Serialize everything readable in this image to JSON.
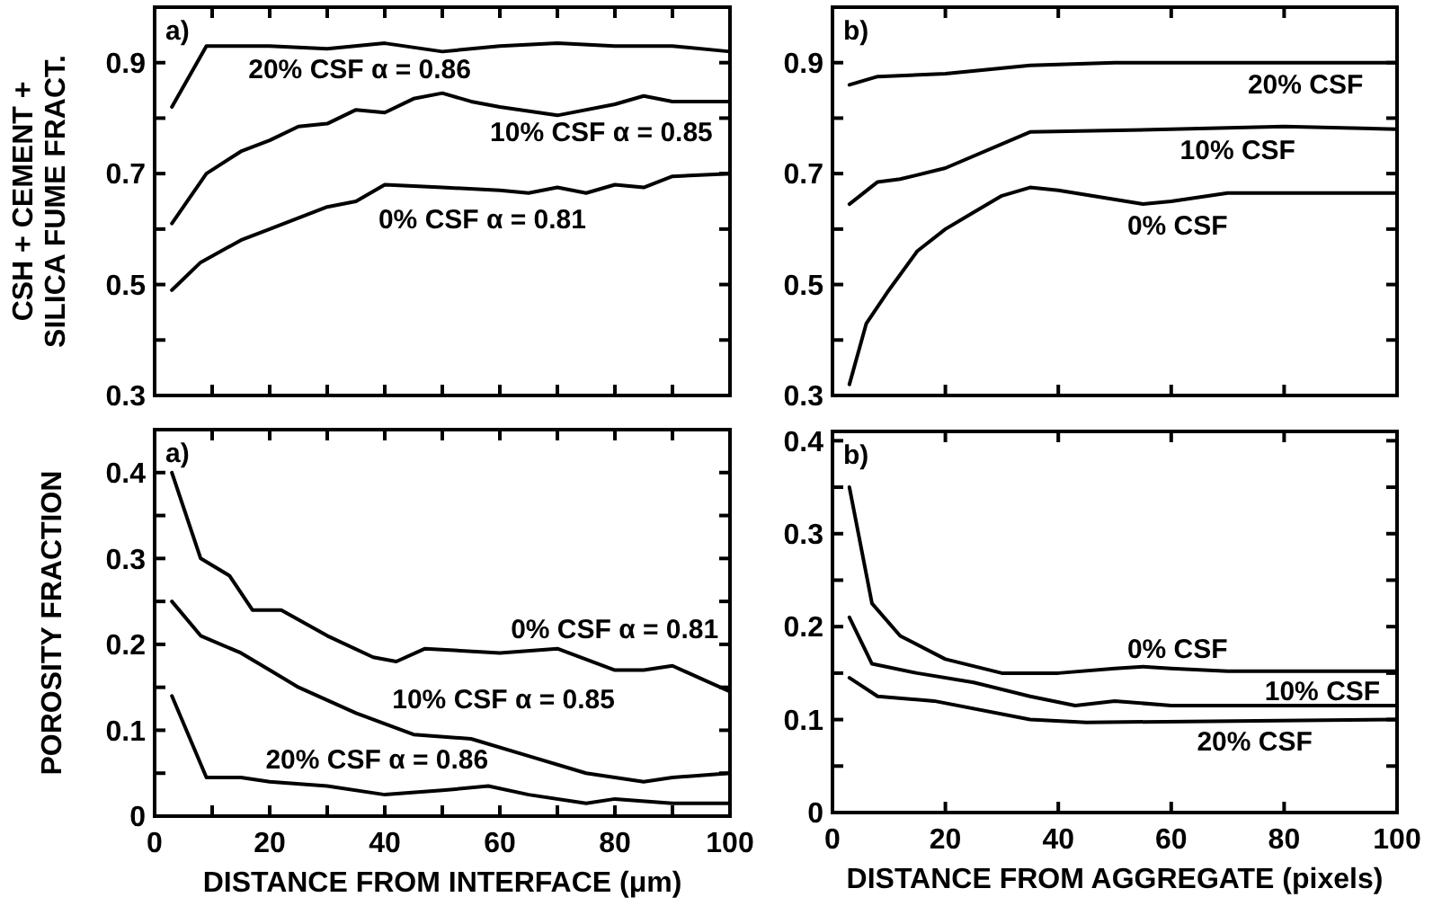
{
  "chart_data": [
    {
      "type": "line",
      "ylabel": "CSH + CEMENT +\nSILICA FUME FRACT.",
      "annotations": [
        "a)"
      ],
      "xlim": [
        0,
        100
      ],
      "ylim": [
        0.3,
        1.0
      ],
      "tick_labels": "y",
      "xticks": [
        {
          "value": 10,
          "label": null
        },
        {
          "value": 20,
          "label": null
        },
        {
          "value": 30,
          "label": null
        },
        {
          "value": 40,
          "label": null
        },
        {
          "value": 50,
          "label": null
        },
        {
          "value": 60,
          "label": null
        },
        {
          "value": 70,
          "label": null
        },
        {
          "value": 80,
          "label": null
        },
        {
          "value": 90,
          "label": null
        }
      ],
      "yticks": [
        0.3,
        {
          "value": 0.4,
          "label": null
        },
        0.5,
        {
          "value": 0.6,
          "label": null
        },
        0.7,
        {
          "value": 0.8,
          "label": null
        },
        0.9
      ],
      "series": [
        {
          "name": "20% CSF α = 0.86",
          "color": "#000000",
          "x": [
            3,
            9,
            20,
            30,
            40,
            50,
            60,
            70,
            80,
            90,
            100
          ],
          "values": [
            0.82,
            0.93,
            0.93,
            0.925,
            0.935,
            0.92,
            0.93,
            0.935,
            0.93,
            0.93,
            0.92
          ]
        },
        {
          "name": "10% CSF α = 0.85",
          "color": "#000000",
          "x": [
            3,
            9,
            15,
            20,
            25,
            30,
            35,
            40,
            45,
            50,
            55,
            60,
            70,
            80,
            85,
            90,
            100
          ],
          "values": [
            0.61,
            0.7,
            0.74,
            0.76,
            0.785,
            0.79,
            0.815,
            0.81,
            0.835,
            0.845,
            0.83,
            0.82,
            0.805,
            0.825,
            0.84,
            0.83,
            0.83
          ]
        },
        {
          "name": "0% CSF α = 0.81",
          "color": "#000000",
          "x": [
            3,
            8,
            15,
            20,
            30,
            35,
            40,
            50,
            60,
            65,
            70,
            75,
            80,
            85,
            90,
            100
          ],
          "values": [
            0.49,
            0.54,
            0.58,
            0.6,
            0.64,
            0.65,
            0.68,
            0.675,
            0.67,
            0.665,
            0.675,
            0.665,
            0.68,
            0.675,
            0.695,
            0.7
          ]
        }
      ]
    },
    {
      "type": "line",
      "annotations": [
        "b)"
      ],
      "xlim": [
        0,
        100
      ],
      "ylim": [
        0.3,
        1.0
      ],
      "tick_labels": "y",
      "xticks": [
        {
          "value": 20,
          "label": null
        },
        {
          "value": 40,
          "label": null
        },
        {
          "value": 60,
          "label": null
        },
        {
          "value": 80,
          "label": null
        }
      ],
      "yticks": [
        0.3,
        {
          "value": 0.4,
          "label": null
        },
        0.5,
        {
          "value": 0.6,
          "label": null
        },
        0.7,
        {
          "value": 0.8,
          "label": null
        },
        0.9
      ],
      "series": [
        {
          "name": "20% CSF",
          "color": "#000000",
          "x": [
            3,
            8,
            20,
            35,
            50,
            100
          ],
          "values": [
            0.86,
            0.875,
            0.88,
            0.895,
            0.9,
            0.9
          ]
        },
        {
          "name": "10% CSF",
          "color": "#000000",
          "x": [
            3,
            8,
            12,
            20,
            35,
            60,
            80,
            100
          ],
          "values": [
            0.645,
            0.685,
            0.69,
            0.71,
            0.775,
            0.78,
            0.785,
            0.78
          ]
        },
        {
          "name": "0% CSF",
          "color": "#000000",
          "x": [
            3,
            6,
            10,
            15,
            20,
            25,
            30,
            35,
            40,
            55,
            60,
            70,
            100
          ],
          "values": [
            0.32,
            0.43,
            0.49,
            0.56,
            0.6,
            0.63,
            0.66,
            0.675,
            0.67,
            0.645,
            0.65,
            0.665,
            0.665
          ]
        }
      ]
    },
    {
      "type": "line",
      "ylabel": "POROSITY FRACTION",
      "xlabel": "DISTANCE FROM INTERFACE (μm)",
      "annotations": [
        "a)"
      ],
      "xlim": [
        0,
        100
      ],
      "ylim": [
        0,
        0.45
      ],
      "xticks": [
        0,
        {
          "value": 10,
          "label": null
        },
        20,
        {
          "value": 30,
          "label": null
        },
        40,
        {
          "value": 50,
          "label": null
        },
        60,
        {
          "value": 70,
          "label": null
        },
        80,
        {
          "value": 90,
          "label": null
        },
        100
      ],
      "yticks": [
        0,
        {
          "value": 0.05,
          "label": null
        },
        0.1,
        {
          "value": 0.15,
          "label": null
        },
        0.2,
        {
          "value": 0.25,
          "label": null
        },
        0.3,
        {
          "value": 0.35,
          "label": null
        },
        0.4
      ],
      "series": [
        {
          "name": "0% CSF α = 0.81",
          "color": "#000000",
          "x": [
            3,
            8,
            13,
            17,
            22,
            30,
            38,
            42,
            47,
            60,
            70,
            80,
            85,
            90,
            95,
            100
          ],
          "values": [
            0.4,
            0.3,
            0.28,
            0.24,
            0.24,
            0.21,
            0.185,
            0.18,
            0.195,
            0.19,
            0.195,
            0.17,
            0.17,
            0.175,
            0.16,
            0.145
          ]
        },
        {
          "name": "10% CSF α = 0.85",
          "color": "#000000",
          "x": [
            3,
            8,
            15,
            20,
            25,
            35,
            45,
            55,
            65,
            75,
            85,
            90,
            100
          ],
          "values": [
            0.25,
            0.21,
            0.19,
            0.17,
            0.15,
            0.12,
            0.095,
            0.09,
            0.07,
            0.05,
            0.04,
            0.045,
            0.05
          ]
        },
        {
          "name": "20% CSF α = 0.86",
          "color": "#000000",
          "x": [
            3,
            9,
            15,
            20,
            30,
            40,
            50,
            58,
            65,
            75,
            80,
            90,
            100
          ],
          "values": [
            0.14,
            0.045,
            0.045,
            0.04,
            0.035,
            0.025,
            0.03,
            0.035,
            0.025,
            0.015,
            0.02,
            0.015,
            0.015
          ]
        }
      ]
    },
    {
      "type": "line",
      "xlabel": "DISTANCE FROM AGGREGATE (pixels)",
      "annotations": [
        "b)"
      ],
      "xlim": [
        0,
        100
      ],
      "ylim": [
        0,
        0.41
      ],
      "xticks": [
        0,
        20,
        40,
        60,
        80,
        100
      ],
      "yticks": [
        0,
        {
          "value": 0.05,
          "label": null
        },
        0.1,
        {
          "value": 0.15,
          "label": null
        },
        0.2,
        {
          "value": 0.25,
          "label": null
        },
        0.3,
        {
          "value": 0.35,
          "label": null
        },
        0.4
      ],
      "series": [
        {
          "name": "0% CSF",
          "color": "#000000",
          "x": [
            3,
            7,
            12,
            20,
            30,
            40,
            50,
            55,
            60,
            70,
            100
          ],
          "values": [
            0.35,
            0.225,
            0.19,
            0.165,
            0.15,
            0.15,
            0.155,
            0.157,
            0.155,
            0.152,
            0.152
          ]
        },
        {
          "name": "10% CSF",
          "color": "#000000",
          "x": [
            3,
            7,
            15,
            25,
            35,
            43,
            50,
            60,
            100
          ],
          "values": [
            0.21,
            0.16,
            0.15,
            0.14,
            0.125,
            0.115,
            0.12,
            0.115,
            0.115
          ]
        },
        {
          "name": "20% CSF",
          "color": "#000000",
          "x": [
            3,
            8,
            18,
            35,
            45,
            100
          ],
          "values": [
            0.145,
            0.125,
            0.12,
            0.1,
            0.097,
            0.1
          ]
        }
      ]
    }
  ]
}
